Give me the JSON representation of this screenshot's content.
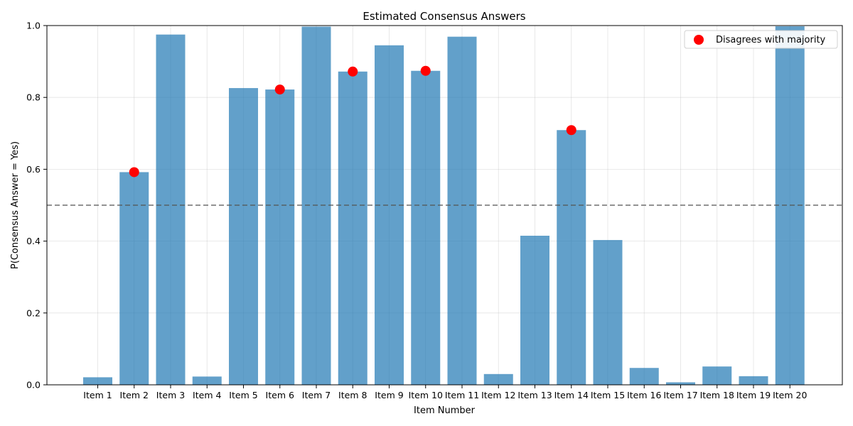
{
  "chart_data": {
    "type": "bar",
    "title": "Estimated Consensus Answers",
    "xlabel": "Item Number",
    "ylabel": "P(Consensus Answer = Yes)",
    "ylim": [
      0,
      1.0
    ],
    "yticks": [
      "0.0",
      "0.2",
      "0.4",
      "0.6",
      "0.8",
      "1.0"
    ],
    "grid": true,
    "categories": [
      "Item 1",
      "Item 2",
      "Item 3",
      "Item 4",
      "Item 5",
      "Item 6",
      "Item 7",
      "Item 8",
      "Item 9",
      "Item 10",
      "Item 11",
      "Item 12",
      "Item 13",
      "Item 14",
      "Item 15",
      "Item 16",
      "Item 17",
      "Item 18",
      "Item 19",
      "Item 20"
    ],
    "values": [
      0.021,
      0.592,
      0.975,
      0.023,
      0.826,
      0.822,
      0.997,
      0.872,
      0.945,
      0.874,
      0.969,
      0.03,
      0.415,
      0.709,
      0.403,
      0.047,
      0.007,
      0.051,
      0.024,
      0.998
    ],
    "bar_color": "#1f77b4",
    "threshold": 0.5,
    "markers": {
      "name": "Disagrees with majority",
      "color": "#ff0000",
      "items": [
        "Item 2",
        "Item 6",
        "Item 8",
        "Item 10",
        "Item 14"
      ]
    },
    "legend_position": "top-right"
  }
}
